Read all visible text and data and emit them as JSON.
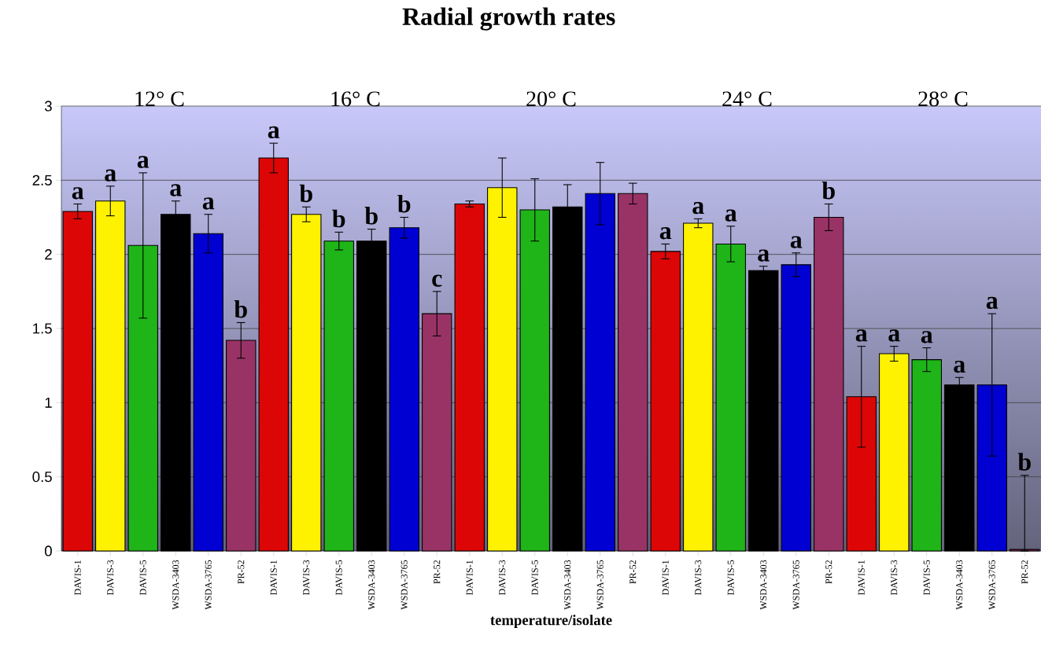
{
  "chart_data": {
    "type": "bar",
    "title": "Radial growth rates",
    "xlabel": "temperature/isolate",
    "categories": [
      "DAVIS-1",
      "DAVIS-3",
      "DAVIS-5",
      "WSDA-3403",
      "WSDA-3765",
      "PR-52",
      "DAVIS-1",
      "DAVIS-3",
      "DAVIS-5",
      "WSDA-3403",
      "WSDA-3765",
      "PR-52",
      "DAVIS-1",
      "DAVIS-3",
      "DAVIS-5",
      "WSDA-3403",
      "WSDA-3765",
      "PR-52",
      "DAVIS-1",
      "DAVIS-3",
      "DAVIS-5",
      "WSDA-3403",
      "WSDA-3765",
      "PR-52",
      "DAVIS-1",
      "DAVIS-3",
      "DAVIS-5",
      "WSDA-3403",
      "WSDA-3765",
      "PR-52"
    ],
    "values": [
      2.29,
      2.36,
      2.06,
      2.27,
      2.14,
      1.42,
      2.65,
      2.27,
      2.09,
      2.09,
      2.18,
      1.6,
      2.34,
      2.45,
      2.3,
      2.32,
      2.41,
      2.41,
      2.02,
      2.21,
      2.07,
      1.89,
      1.93,
      2.25,
      1.04,
      1.33,
      1.29,
      1.12,
      1.12,
      0.01
    ],
    "errors": [
      0.05,
      0.1,
      0.49,
      0.09,
      0.13,
      0.12,
      0.1,
      0.05,
      0.06,
      0.08,
      0.07,
      0.15,
      0.02,
      0.2,
      0.21,
      0.15,
      0.21,
      0.07,
      0.05,
      0.03,
      0.12,
      0.03,
      0.08,
      0.09,
      0.34,
      0.05,
      0.08,
      0.05,
      0.48,
      [
        0,
        0.51
      ]
    ],
    "colors": [
      "#dd0606",
      "#fff200",
      "#1fb518",
      "#000000",
      "#0000d2",
      "#993366",
      "#dd0606",
      "#fff200",
      "#1fb518",
      "#000000",
      "#0000d2",
      "#993366",
      "#dd0606",
      "#fff200",
      "#1fb518",
      "#000000",
      "#0000d2",
      "#993366",
      "#dd0606",
      "#fff200",
      "#1fb518",
      "#000000",
      "#0000d2",
      "#993366",
      "#dd0606",
      "#fff200",
      "#1fb518",
      "#000000",
      "#0000d2",
      "#993366"
    ],
    "value_labels": [
      "a",
      "a",
      "a",
      "a",
      "a",
      "b",
      "a",
      "b",
      "b",
      "b",
      "b",
      "c",
      null,
      null,
      null,
      null,
      null,
      null,
      "a",
      "a",
      "a",
      "a",
      "a",
      "b",
      "a",
      "a",
      "a",
      "a",
      "a",
      "b"
    ],
    "annotations": [
      "12° C",
      "16° C",
      "20° C",
      "24° C",
      "28° C"
    ],
    "ylim": [
      0,
      3
    ],
    "yticks": [
      0,
      0.5,
      1,
      1.5,
      2,
      2.5,
      3
    ],
    "grid": "y"
  }
}
